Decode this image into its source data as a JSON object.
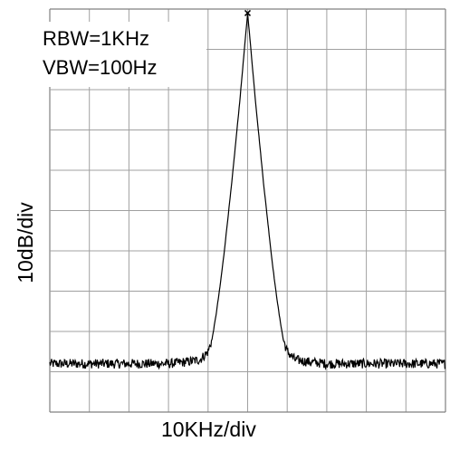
{
  "chart_data": {
    "type": "line",
    "xlabel": "10KHz/div",
    "ylabel": "10dB/div",
    "annotations": [
      "RBW=1KHz",
      "VBW=100Hz"
    ],
    "grid": true,
    "x_divisions": 10,
    "y_divisions": 10,
    "x_unit": "kHz",
    "y_unit": "dB",
    "xlim": [
      -50,
      50
    ],
    "ylim": [
      -100,
      0
    ],
    "peak": {
      "x": 0,
      "y": -1,
      "marker": "x"
    },
    "noise_floor_db": -88,
    "noise_ripple_db": 1.2,
    "series": [
      {
        "x": [
          -50,
          -40,
          -30,
          -20,
          -15,
          -12,
          -10,
          -9,
          -8,
          -7,
          -6,
          -5,
          -4,
          -3,
          -2,
          -1,
          0,
          1,
          2,
          3,
          4,
          5,
          6,
          7,
          8,
          9,
          10,
          12,
          15,
          20,
          30,
          40,
          50
        ],
        "y": [
          -88,
          -88,
          -88,
          -88,
          -87.5,
          -87,
          -85,
          -82,
          -76,
          -69,
          -61,
          -52,
          -43,
          -33,
          -23,
          -12,
          -1,
          -12,
          -23,
          -33,
          -43,
          -52,
          -61,
          -69,
          -76,
          -82,
          -85,
          -87,
          -87.5,
          -88,
          -88,
          -88,
          -88
        ]
      }
    ],
    "colors": {
      "trace": "#000000",
      "grid": "#a0a0a0",
      "frame": "#808080"
    }
  }
}
